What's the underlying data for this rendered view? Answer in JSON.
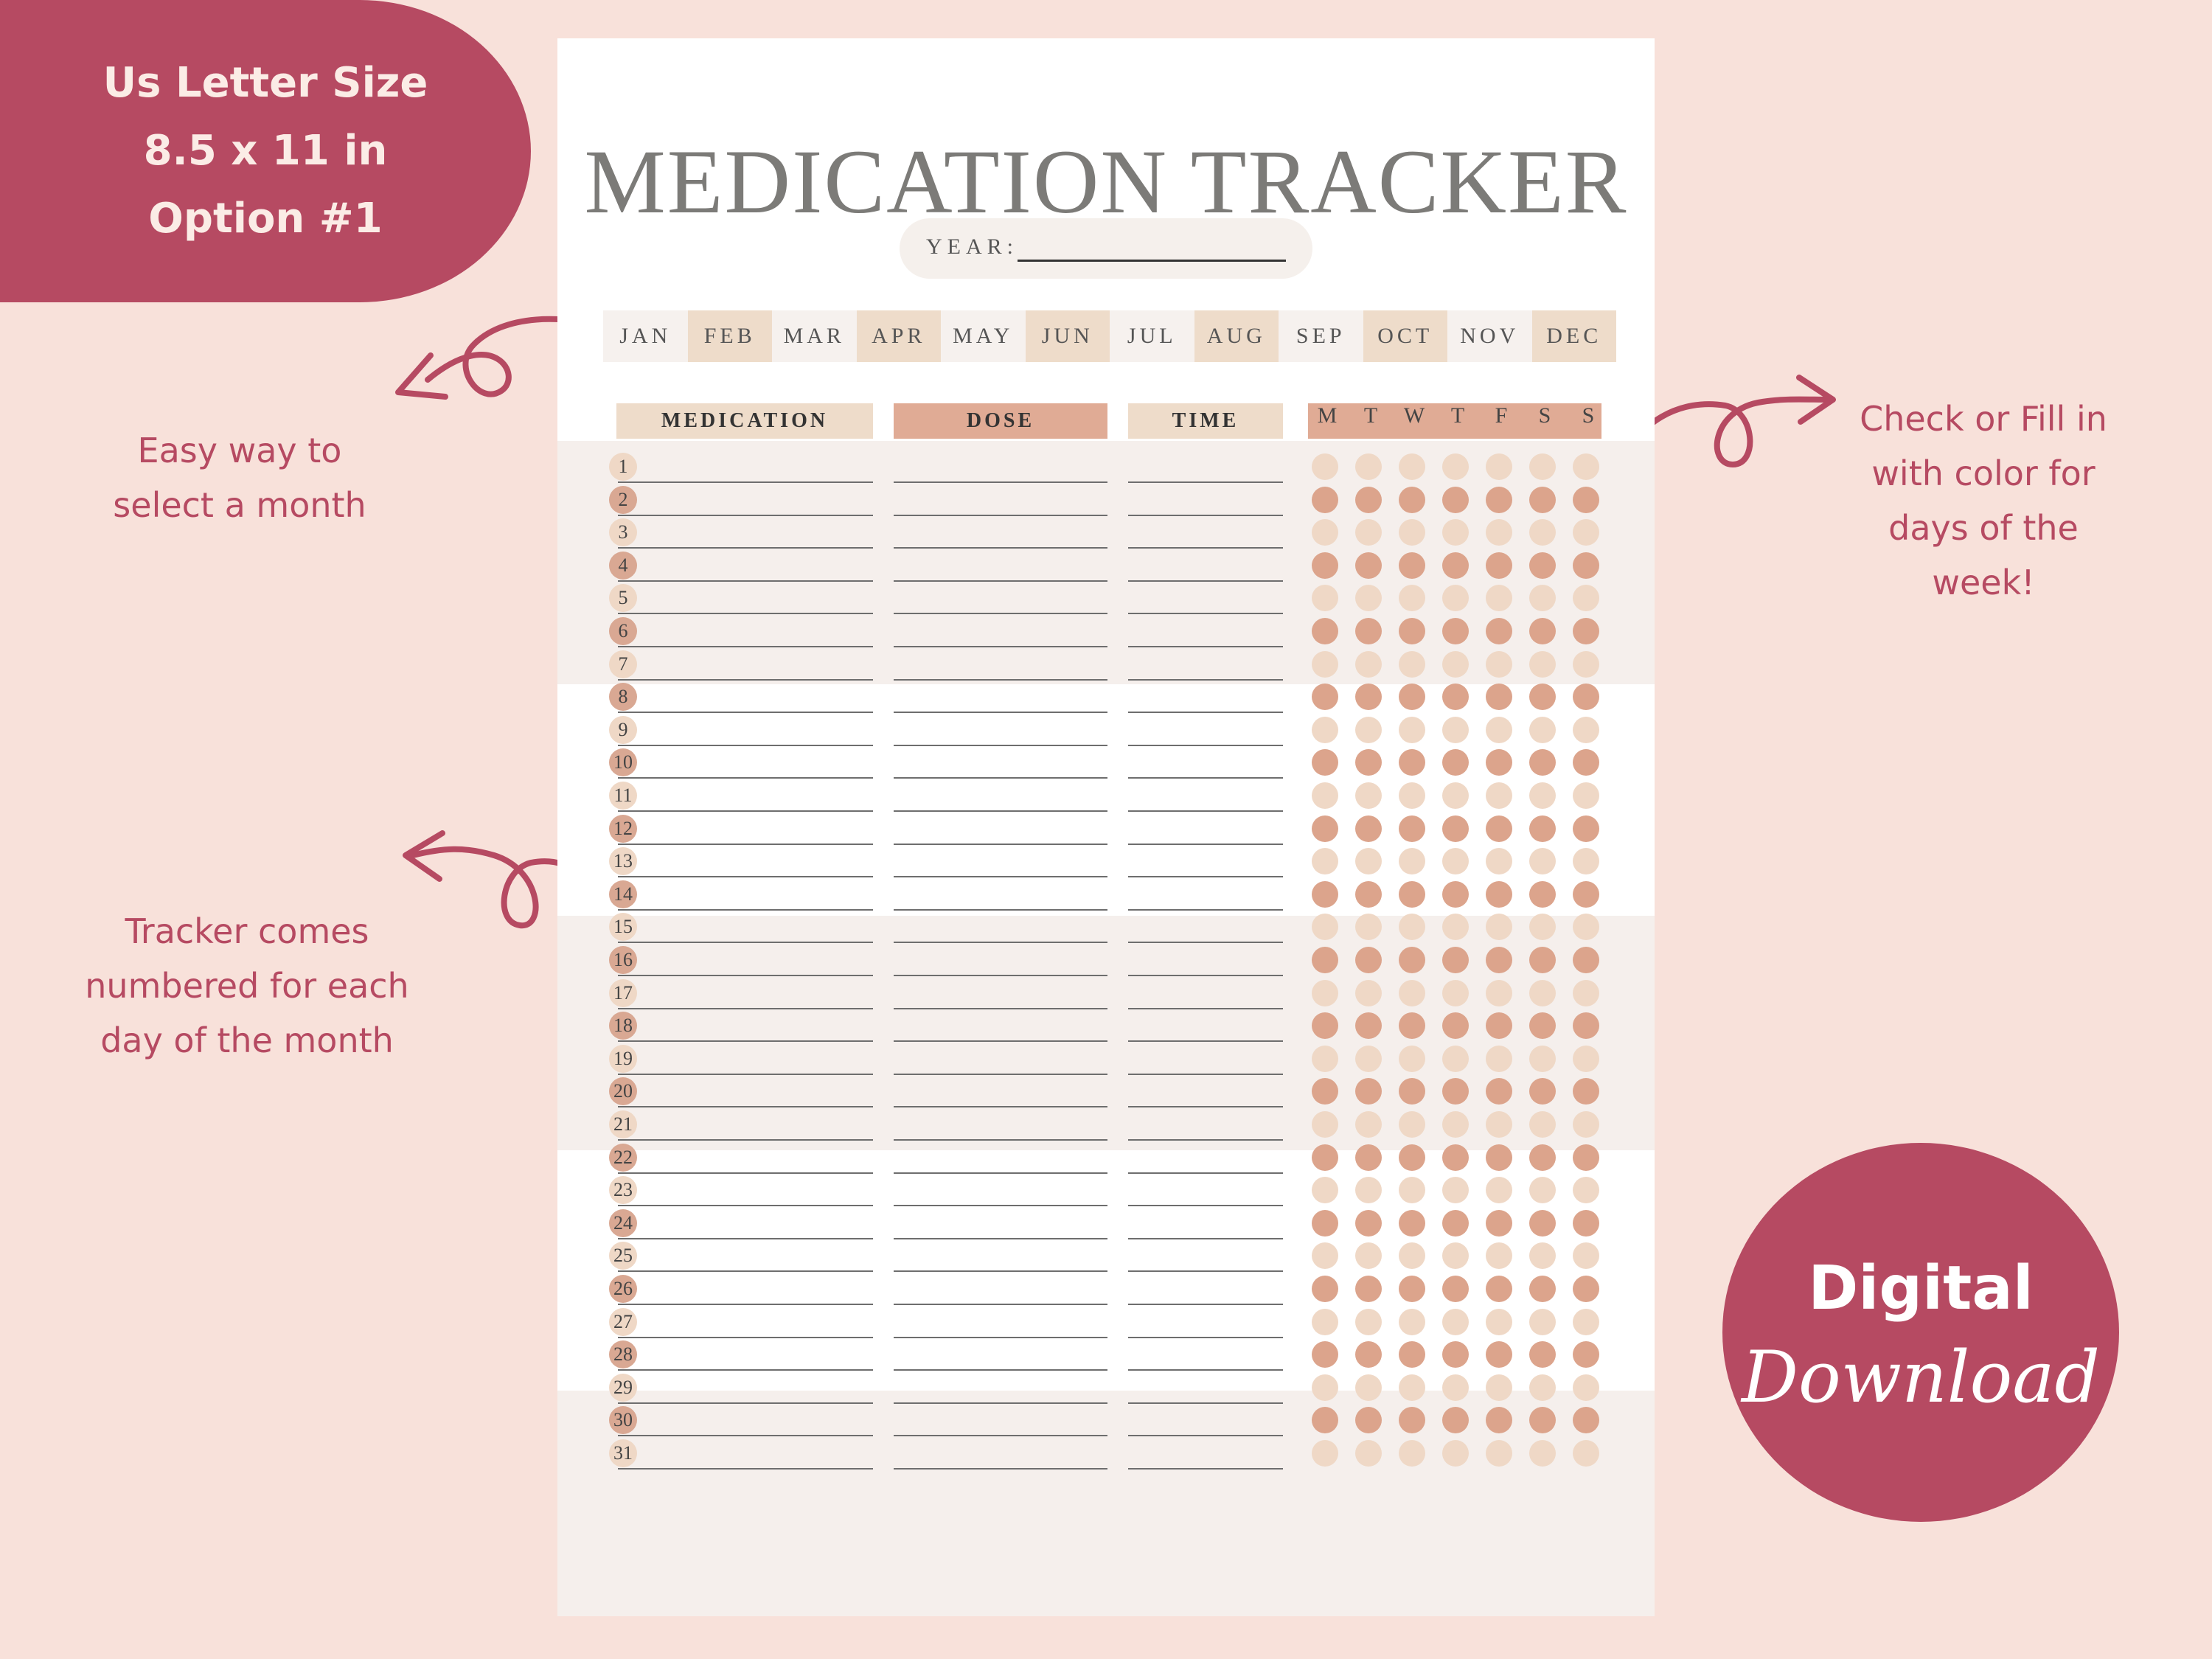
{
  "size_badge": {
    "lines": [
      "Us Letter Size",
      "8.5 x 11 in",
      "Option #1"
    ],
    "color": "#b64a62"
  },
  "notes": {
    "month": [
      "Easy way to",
      "select a month"
    ],
    "numbered": [
      "Tracker comes",
      "numbered for each",
      "day of the month"
    ],
    "fill": [
      "Check or Fill in",
      "with color for",
      "days of the",
      "week!"
    ]
  },
  "digital_badge": {
    "word1": "Digital",
    "word2": "Download"
  },
  "tracker": {
    "title": "MEDICATION TRACKER",
    "year_label": "YEAR:",
    "months": [
      "JAN",
      "FEB",
      "MAR",
      "APR",
      "MAY",
      "JUN",
      "JUL",
      "AUG",
      "SEP",
      "OCT",
      "NOV",
      "DEC"
    ],
    "columns": {
      "medication": "MEDICATION",
      "dose": "DOSE",
      "time": "TIME"
    },
    "weekdays": [
      "M",
      "T",
      "W",
      "T",
      "F",
      "S",
      "S"
    ],
    "day_numbers": [
      "1",
      "2",
      "3",
      "4",
      "5",
      "6",
      "7",
      "8",
      "9",
      "10",
      "11",
      "12",
      "13",
      "14",
      "15",
      "16",
      "17",
      "18",
      "19",
      "20",
      "21",
      "22",
      "23",
      "24",
      "25",
      "26",
      "27",
      "28",
      "29",
      "30",
      "31"
    ],
    "colors": {
      "accent": "#b64a62",
      "background": "#f8e1da",
      "light_dot": "#efd8c6",
      "dark_dot": "#dca48c",
      "band": "#f5efec"
    }
  }
}
